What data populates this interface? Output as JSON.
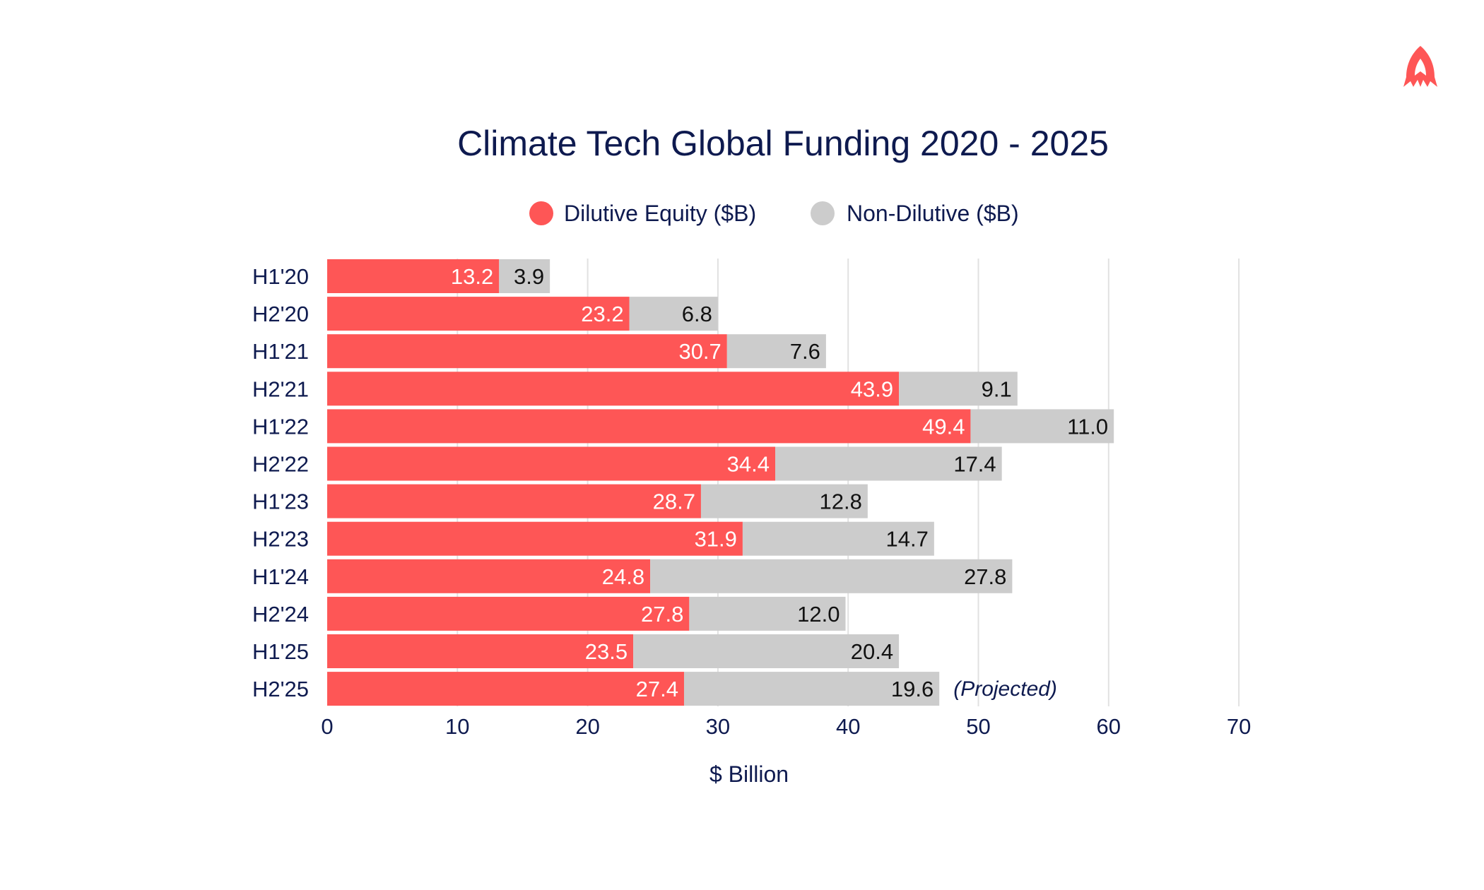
{
  "colors": {
    "primary": "#fe5656",
    "secondary": "#cccccc",
    "text": "#0e1a4f",
    "grid": "#e1e1e1",
    "logo": "#fe5656"
  },
  "logo": {
    "icon": "rocket-logo-icon"
  },
  "chart_data": {
    "type": "bar",
    "orientation": "horizontal",
    "stacked": true,
    "title": "Climate Tech Global Funding 2020 - 2025",
    "xlabel": "$ Billion",
    "ylabel": "",
    "xlim": [
      0,
      70
    ],
    "xticks": [
      "0",
      "10",
      "20",
      "30",
      "40",
      "50",
      "60",
      "70"
    ],
    "grid": true,
    "legend_position": "top-center",
    "categories": [
      "H1'20",
      "H2'20",
      "H1'21",
      "H2'21",
      "H1'22",
      "H2'22",
      "H1'23",
      "H2'23",
      "H1'24",
      "H2'24",
      "H1'25",
      "H2'25"
    ],
    "series": [
      {
        "name": "Dilutive Equity ($B)",
        "values": [
          13.2,
          23.2,
          30.7,
          43.9,
          49.4,
          34.4,
          28.7,
          31.9,
          24.8,
          27.8,
          23.5,
          27.4
        ],
        "labels": [
          "13.2",
          "23.2",
          "30.7",
          "43.9",
          "49.4",
          "34.4",
          "28.7",
          "31.9",
          "24.8",
          "27.8",
          "23.5",
          "27.4"
        ]
      },
      {
        "name": "Non-Dilutive ($B)",
        "values": [
          3.9,
          6.8,
          7.6,
          9.1,
          11.0,
          17.4,
          12.8,
          14.7,
          27.8,
          12.0,
          20.4,
          19.6
        ],
        "labels": [
          "3.9",
          "6.8",
          "7.6",
          "9.1",
          "11.0",
          "17.4",
          "12.8",
          "14.7",
          "27.8",
          "12.0",
          "20.4",
          "19.6"
        ]
      }
    ],
    "annotations": [
      {
        "category": "H2'25",
        "text": "(Projected)"
      }
    ]
  }
}
